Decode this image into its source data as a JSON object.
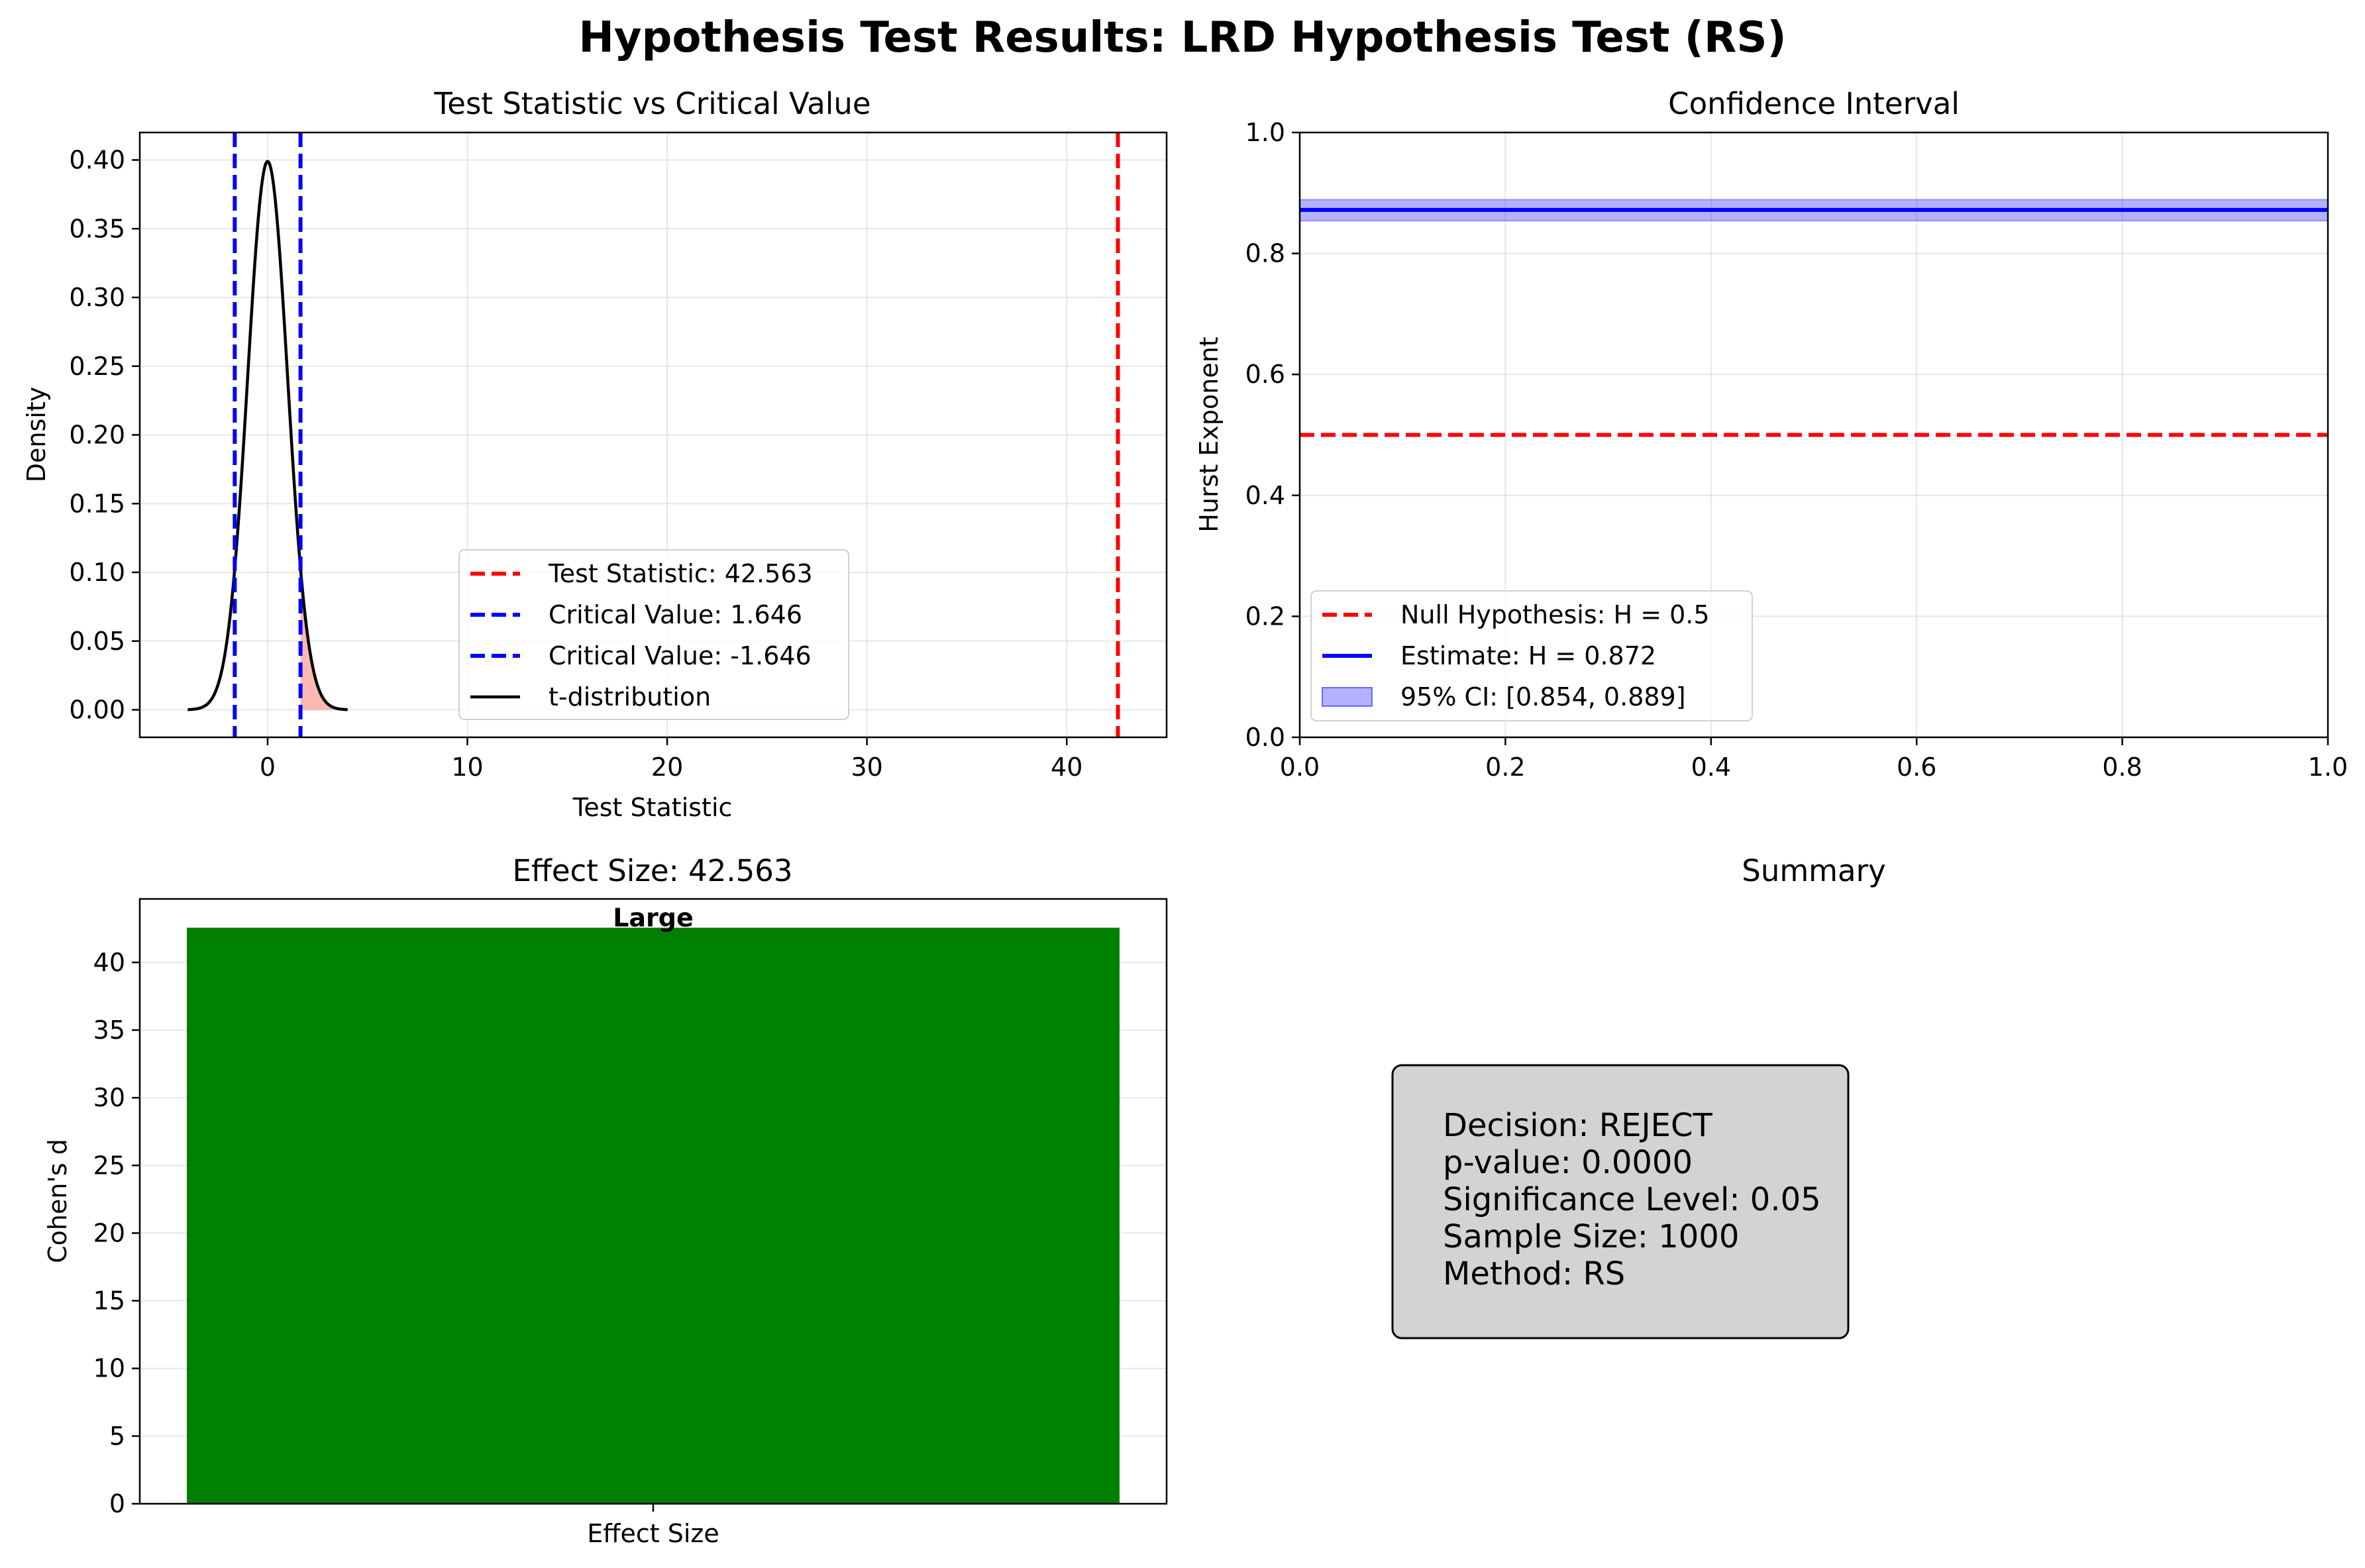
{
  "figure": {
    "title": "Hypothesis Test Results: LRD Hypothesis Test (RS)"
  },
  "chart_data": [
    {
      "type": "line",
      "title": "Test Statistic vs Critical Value",
      "xlabel": "Test Statistic",
      "ylabel": "Density",
      "xlim": [
        -6.4,
        45
      ],
      "ylim": [
        -0.02,
        0.42
      ],
      "xticks": [
        0,
        10,
        20,
        30,
        40
      ],
      "yticks": [
        0.0,
        0.05,
        0.1,
        0.15,
        0.2,
        0.25,
        0.3,
        0.35,
        0.4
      ],
      "ytick_labels": [
        "0.00",
        "0.05",
        "0.10",
        "0.15",
        "0.20",
        "0.25",
        "0.30",
        "0.35",
        "0.40"
      ],
      "grid": true,
      "legend_position": "lower center",
      "vlines": [
        {
          "name": "Test Statistic: 42.563",
          "x": 42.563,
          "color": "#ff0000",
          "style": "dashed"
        },
        {
          "name": "Critical Value: 1.646",
          "x": 1.646,
          "color": "#0000ff",
          "style": "dashed"
        },
        {
          "name": "Critical Value: -1.646",
          "x": -1.646,
          "color": "#0000ff",
          "style": "dashed"
        }
      ],
      "series": [
        {
          "name": "t-distribution",
          "color": "#000000",
          "function": "standard_normal_pdf",
          "x_range": [
            -4,
            4
          ]
        }
      ],
      "shaded_region": {
        "x_from": 1.646,
        "x_to": 4,
        "color": "#fa8072"
      }
    },
    {
      "type": "line",
      "title": "Confidence Interval",
      "xlabel": "",
      "ylabel": "Hurst Exponent",
      "xlim": [
        0,
        1
      ],
      "ylim": [
        0,
        1
      ],
      "xticks": [
        0.0,
        0.2,
        0.4,
        0.6,
        0.8,
        1.0
      ],
      "xtick_labels": [
        "0.0",
        "0.2",
        "0.4",
        "0.6",
        "0.8",
        "1.0"
      ],
      "yticks": [
        0.0,
        0.2,
        0.4,
        0.6,
        0.8,
        1.0
      ],
      "ytick_labels": [
        "0.0",
        "0.2",
        "0.4",
        "0.6",
        "0.8",
        "1.0"
      ],
      "grid": true,
      "legend_position": "lower left",
      "hlines": [
        {
          "name": "Null Hypothesis: H = 0.5",
          "y": 0.5,
          "color": "#ff0000",
          "style": "dashed"
        },
        {
          "name": "Estimate: H = 0.872",
          "y": 0.872,
          "color": "#0000ff",
          "style": "solid"
        }
      ],
      "band": {
        "name": "95% CI: [0.854, 0.889]",
        "y_low": 0.854,
        "y_high": 0.889,
        "color": "#0000ff"
      }
    },
    {
      "type": "bar",
      "title": "Effect Size: 42.563",
      "xlabel": "",
      "ylabel": "Cohen's d",
      "categories": [
        "Effect Size"
      ],
      "values": [
        42.563
      ],
      "bar_color": "#008000",
      "bar_label": "Large",
      "ylim": [
        0,
        44.69
      ],
      "yticks": [
        0,
        5,
        10,
        15,
        20,
        25,
        30,
        35,
        40
      ],
      "grid": true
    }
  ],
  "summary": {
    "title": "Summary",
    "lines": [
      "Decision: REJECT",
      "p-value: 0.0000",
      "Significance Level: 0.05",
      "Sample Size: 1000",
      "Method: RS"
    ]
  }
}
